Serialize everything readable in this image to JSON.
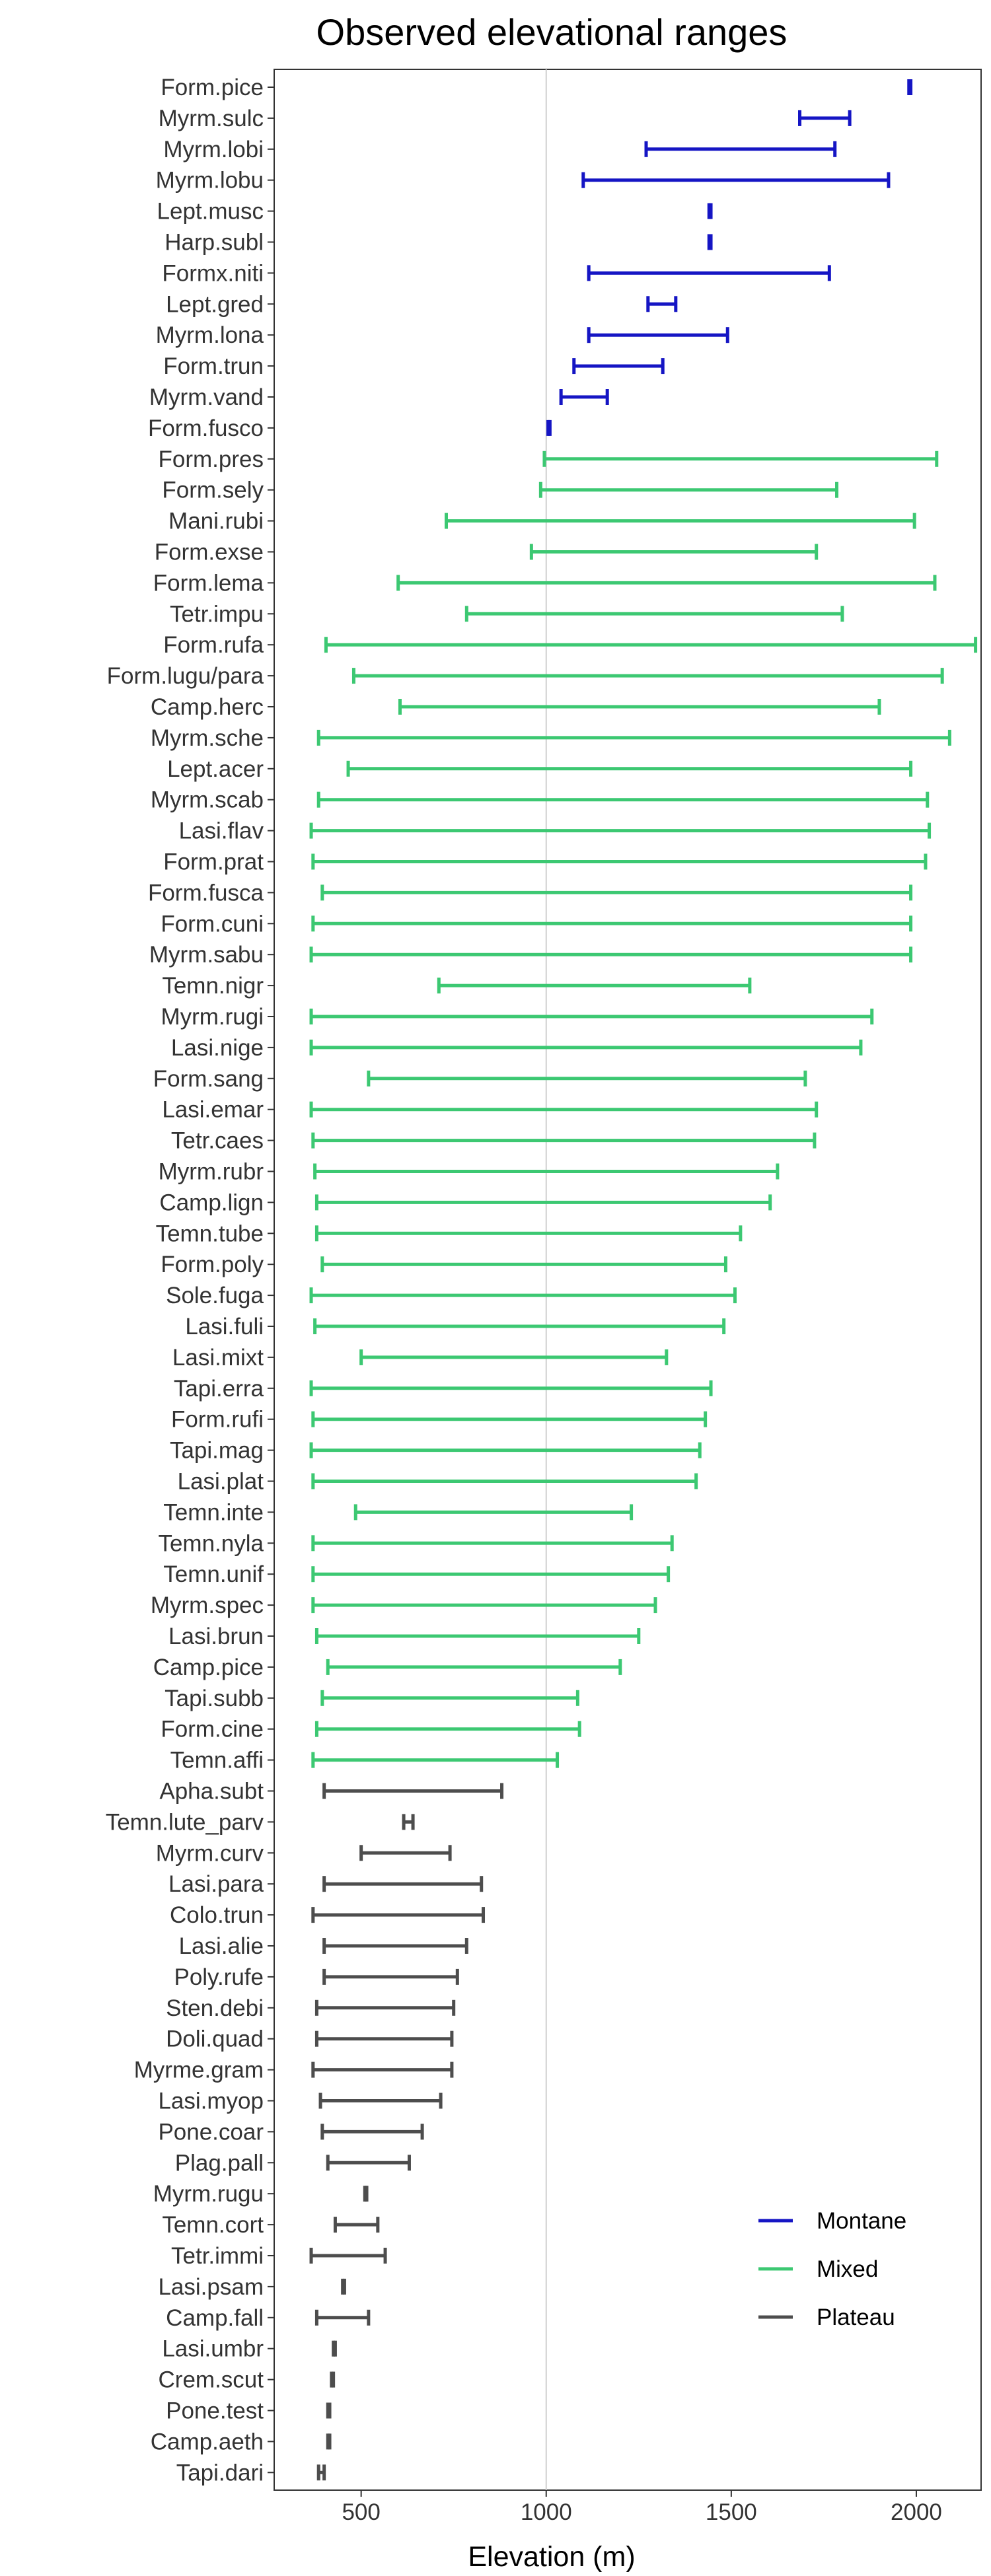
{
  "chart_data": {
    "type": "range",
    "title": "Observed elevational ranges",
    "xlabel": "Elevation (m)",
    "ylabel": "",
    "xlim": [
      265,
      2175
    ],
    "xticks": [
      500,
      1000,
      1500,
      2000
    ],
    "reference_line": 1000,
    "grid": false,
    "legend": {
      "position": "bottom-right",
      "entries": [
        {
          "name": "Montane",
          "color": "#1515c4"
        },
        {
          "name": "Mixed",
          "color": "#3cc872"
        },
        {
          "name": "Plateau",
          "color": "#4d4d4d"
        }
      ]
    },
    "groups": {
      "Montane": "#1515c4",
      "Mixed": "#3cc872",
      "Plateau": "#4d4d4d"
    },
    "series": [
      {
        "label": "Form.pice",
        "group": "Montane",
        "min": 1980,
        "max": 1985
      },
      {
        "label": "Myrm.sulc",
        "group": "Montane",
        "min": 1685,
        "max": 1820
      },
      {
        "label": "Myrm.lobi",
        "group": "Montane",
        "min": 1270,
        "max": 1780
      },
      {
        "label": "Myrm.lobu",
        "group": "Montane",
        "min": 1100,
        "max": 1925
      },
      {
        "label": "Lept.musc",
        "group": "Montane",
        "min": 1440,
        "max": 1445
      },
      {
        "label": "Harp.subl",
        "group": "Montane",
        "min": 1440,
        "max": 1445
      },
      {
        "label": "Formx.niti",
        "group": "Montane",
        "min": 1115,
        "max": 1765
      },
      {
        "label": "Lept.gred",
        "group": "Montane",
        "min": 1275,
        "max": 1350
      },
      {
        "label": "Myrm.lona",
        "group": "Montane",
        "min": 1115,
        "max": 1490
      },
      {
        "label": "Form.trun",
        "group": "Montane",
        "min": 1075,
        "max": 1315
      },
      {
        "label": "Myrm.vand",
        "group": "Montane",
        "min": 1040,
        "max": 1165
      },
      {
        "label": "Form.fusco",
        "group": "Montane",
        "min": 1005,
        "max": 1010
      },
      {
        "label": "Form.pres",
        "group": "Mixed",
        "min": 995,
        "max": 2055
      },
      {
        "label": "Form.sely",
        "group": "Mixed",
        "min": 985,
        "max": 1785
      },
      {
        "label": "Mani.rubi",
        "group": "Mixed",
        "min": 730,
        "max": 1995
      },
      {
        "label": "Form.exse",
        "group": "Mixed",
        "min": 960,
        "max": 1730
      },
      {
        "label": "Form.lema",
        "group": "Mixed",
        "min": 600,
        "max": 2050
      },
      {
        "label": "Tetr.impu",
        "group": "Mixed",
        "min": 785,
        "max": 1800
      },
      {
        "label": "Form.rufa",
        "group": "Mixed",
        "min": 405,
        "max": 2160
      },
      {
        "label": "Form.lugu/para",
        "group": "Mixed",
        "min": 480,
        "max": 2070
      },
      {
        "label": "Camp.herc",
        "group": "Mixed",
        "min": 605,
        "max": 1900
      },
      {
        "label": "Myrm.sche",
        "group": "Mixed",
        "min": 385,
        "max": 2090
      },
      {
        "label": "Lept.acer",
        "group": "Mixed",
        "min": 465,
        "max": 1985
      },
      {
        "label": "Myrm.scab",
        "group": "Mixed",
        "min": 385,
        "max": 2030
      },
      {
        "label": "Lasi.flav",
        "group": "Mixed",
        "min": 365,
        "max": 2035
      },
      {
        "label": "Form.prat",
        "group": "Mixed",
        "min": 370,
        "max": 2025
      },
      {
        "label": "Form.fusca",
        "group": "Mixed",
        "min": 395,
        "max": 1985
      },
      {
        "label": "Form.cuni",
        "group": "Mixed",
        "min": 370,
        "max": 1985
      },
      {
        "label": "Myrm.sabu",
        "group": "Mixed",
        "min": 365,
        "max": 1985
      },
      {
        "label": "Temn.nigr",
        "group": "Mixed",
        "min": 710,
        "max": 1550
      },
      {
        "label": "Myrm.rugi",
        "group": "Mixed",
        "min": 365,
        "max": 1880
      },
      {
        "label": "Lasi.nige",
        "group": "Mixed",
        "min": 365,
        "max": 1850
      },
      {
        "label": "Form.sang",
        "group": "Mixed",
        "min": 520,
        "max": 1700
      },
      {
        "label": "Lasi.emar",
        "group": "Mixed",
        "min": 365,
        "max": 1730
      },
      {
        "label": "Tetr.caes",
        "group": "Mixed",
        "min": 370,
        "max": 1725
      },
      {
        "label": "Myrm.rubr",
        "group": "Mixed",
        "min": 375,
        "max": 1625
      },
      {
        "label": "Camp.lign",
        "group": "Mixed",
        "min": 380,
        "max": 1605
      },
      {
        "label": "Temn.tube",
        "group": "Mixed",
        "min": 380,
        "max": 1525
      },
      {
        "label": "Form.poly",
        "group": "Mixed",
        "min": 395,
        "max": 1485
      },
      {
        "label": "Sole.fuga",
        "group": "Mixed",
        "min": 365,
        "max": 1510
      },
      {
        "label": "Lasi.fuli",
        "group": "Mixed",
        "min": 375,
        "max": 1480
      },
      {
        "label": "Lasi.mixt",
        "group": "Mixed",
        "min": 500,
        "max": 1325
      },
      {
        "label": "Tapi.erra",
        "group": "Mixed",
        "min": 365,
        "max": 1445
      },
      {
        "label": "Form.rufi",
        "group": "Mixed",
        "min": 370,
        "max": 1430
      },
      {
        "label": "Tapi.mag",
        "group": "Mixed",
        "min": 365,
        "max": 1415
      },
      {
        "label": "Lasi.plat",
        "group": "Mixed",
        "min": 370,
        "max": 1405
      },
      {
        "label": "Temn.inte",
        "group": "Mixed",
        "min": 485,
        "max": 1230
      },
      {
        "label": "Temn.nyla",
        "group": "Mixed",
        "min": 370,
        "max": 1340
      },
      {
        "label": "Temn.unif",
        "group": "Mixed",
        "min": 370,
        "max": 1330
      },
      {
        "label": "Myrm.spec",
        "group": "Mixed",
        "min": 370,
        "max": 1295
      },
      {
        "label": "Lasi.brun",
        "group": "Mixed",
        "min": 380,
        "max": 1250
      },
      {
        "label": "Camp.pice",
        "group": "Mixed",
        "min": 410,
        "max": 1200
      },
      {
        "label": "Tapi.subb",
        "group": "Mixed",
        "min": 395,
        "max": 1085
      },
      {
        "label": "Form.cine",
        "group": "Mixed",
        "min": 380,
        "max": 1090
      },
      {
        "label": "Temn.affi",
        "group": "Mixed",
        "min": 370,
        "max": 1030
      },
      {
        "label": "Apha.subt",
        "group": "Plateau",
        "min": 400,
        "max": 880
      },
      {
        "label": "Temn.lute_parv",
        "group": "Plateau",
        "min": 615,
        "max": 640
      },
      {
        "label": "Myrm.curv",
        "group": "Plateau",
        "min": 500,
        "max": 740
      },
      {
        "label": "Lasi.para",
        "group": "Plateau",
        "min": 400,
        "max": 825
      },
      {
        "label": "Colo.trun",
        "group": "Plateau",
        "min": 370,
        "max": 830
      },
      {
        "label": "Lasi.alie",
        "group": "Plateau",
        "min": 400,
        "max": 785
      },
      {
        "label": "Poly.rufe",
        "group": "Plateau",
        "min": 400,
        "max": 760
      },
      {
        "label": "Sten.debi",
        "group": "Plateau",
        "min": 380,
        "max": 750
      },
      {
        "label": "Doli.quad",
        "group": "Plateau",
        "min": 380,
        "max": 745
      },
      {
        "label": "Myrme.gram",
        "group": "Plateau",
        "min": 370,
        "max": 745
      },
      {
        "label": "Lasi.myop",
        "group": "Plateau",
        "min": 390,
        "max": 715
      },
      {
        "label": "Pone.coar",
        "group": "Plateau",
        "min": 395,
        "max": 665
      },
      {
        "label": "Plag.pall",
        "group": "Plateau",
        "min": 410,
        "max": 630
      },
      {
        "label": "Myrm.rugu",
        "group": "Plateau",
        "min": 510,
        "max": 515
      },
      {
        "label": "Temn.cort",
        "group": "Plateau",
        "min": 430,
        "max": 545
      },
      {
        "label": "Tetr.immi",
        "group": "Plateau",
        "min": 365,
        "max": 565
      },
      {
        "label": "Lasi.psam",
        "group": "Plateau",
        "min": 450,
        "max": 455
      },
      {
        "label": "Camp.fall",
        "group": "Plateau",
        "min": 380,
        "max": 520
      },
      {
        "label": "Lasi.umbr",
        "group": "Plateau",
        "min": 425,
        "max": 430
      },
      {
        "label": "Crem.scut",
        "group": "Plateau",
        "min": 420,
        "max": 425
      },
      {
        "label": "Pone.test",
        "group": "Plateau",
        "min": 410,
        "max": 415
      },
      {
        "label": "Camp.aeth",
        "group": "Plateau",
        "min": 410,
        "max": 415
      },
      {
        "label": "Tapi.dari",
        "group": "Plateau",
        "min": 385,
        "max": 400
      }
    ]
  }
}
